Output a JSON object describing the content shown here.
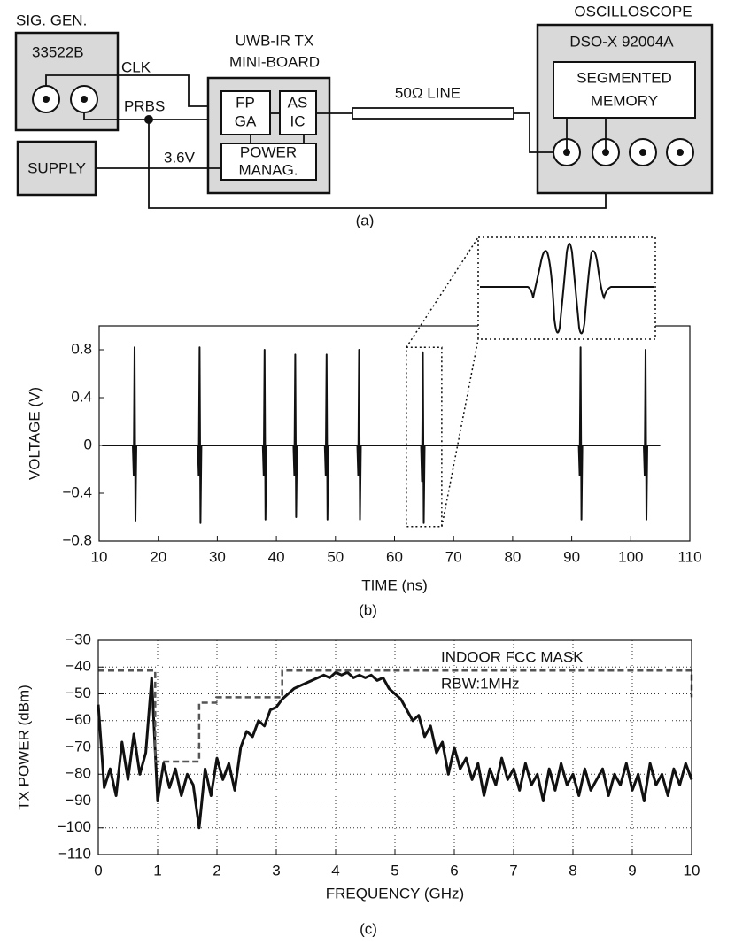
{
  "diagram": {
    "signal_generator": {
      "title": "SIG. GEN.",
      "model": "33522B"
    },
    "clk": "CLK",
    "prbs": "PRBS",
    "tx_board": {
      "title": [
        "UWB-IR TX",
        "MINI-BOARD"
      ],
      "fpga": [
        "FP",
        "GA"
      ],
      "asic": [
        "AS",
        "IC"
      ],
      "power": [
        "POWER",
        "MANAG."
      ]
    },
    "supply": "SUPPLY",
    "voltage": "3.6V",
    "line": "50Ω LINE",
    "oscilloscope": {
      "title": "OSCILLOSCOPE",
      "model": "DSO-X 92004A",
      "memory": [
        "SEGMENTED",
        "MEMORY"
      ]
    },
    "caption": "(a)"
  },
  "chart_data": [
    {
      "type": "line",
      "caption": "(b)",
      "xlabel": "TIME (ns)",
      "ylabel": "VOLTAGE (V)",
      "xlim": [
        10,
        110
      ],
      "xticks": [
        10,
        20,
        30,
        40,
        50,
        60,
        70,
        80,
        90,
        100,
        110
      ],
      "ylim": [
        -0.8,
        1.0
      ],
      "yticks": [
        {
          "value": -0.8,
          "label": "−0.8"
        },
        {
          "value": -0.4,
          "label": "−0.4"
        },
        0,
        0.4,
        0.8
      ],
      "grid": false,
      "highlight": {
        "xlim": [
          62,
          68
        ],
        "ylim": [
          -0.68,
          0.82
        ]
      },
      "series": [
        {
          "color": "#111111",
          "line_style": "solid",
          "x": [
            10.5,
            15.7,
            15.85,
            16,
            16.15,
            16.3,
            26.7,
            26.85,
            27,
            27.15,
            27.3,
            37.7,
            37.85,
            38,
            38.15,
            38.3,
            42.9,
            43.05,
            43.2,
            43.35,
            43.5,
            48.2,
            48.35,
            48.5,
            48.65,
            48.8,
            53.7,
            53.85,
            54,
            54.15,
            54.3,
            64.5,
            64.65,
            64.8,
            64.95,
            65.1,
            91.2,
            91.35,
            91.5,
            91.65,
            91.8,
            102.2,
            102.35,
            102.5,
            102.65,
            102.8,
            105
          ],
          "values": [
            0,
            0,
            -0.25,
            0.82,
            -0.63,
            0,
            0,
            -0.25,
            0.82,
            -0.65,
            0,
            0,
            -0.25,
            0.8,
            -0.62,
            0,
            0,
            -0.25,
            0.76,
            -0.6,
            0,
            0,
            -0.25,
            0.76,
            -0.62,
            0,
            0,
            -0.25,
            0.8,
            -0.62,
            0,
            0,
            -0.3,
            0.78,
            -0.65,
            0,
            0,
            -0.25,
            0.82,
            -0.62,
            0,
            0,
            -0.25,
            0.8,
            -0.62,
            0,
            0
          ]
        }
      ]
    },
    {
      "type": "line",
      "caption": "(c)",
      "xlabel": "FREQUENCY (GHz)",
      "ylabel": "TX POWER (dBm)",
      "xlim": [
        0,
        10
      ],
      "xticks": [
        0,
        1,
        2,
        3,
        4,
        5,
        6,
        7,
        8,
        9,
        10
      ],
      "ylim": [
        -110,
        -30
      ],
      "yticks": [
        {
          "value": -110,
          "label": "−110"
        },
        {
          "value": -100,
          "label": "−100"
        },
        {
          "value": -90,
          "label": "−90"
        },
        {
          "value": -80,
          "label": "−80"
        },
        {
          "value": -70,
          "label": "−70"
        },
        {
          "value": -60,
          "label": "−60"
        },
        {
          "value": -50,
          "label": "−50"
        },
        {
          "value": -40,
          "label": "−40"
        },
        {
          "value": -30,
          "label": "−30"
        }
      ],
      "grid": true,
      "annotations": [
        "INDOOR FCC MASK",
        "RBW:1MHz"
      ],
      "series": [
        {
          "color": "#111111",
          "line_style": "solid",
          "x": [
            0,
            0.1,
            0.2,
            0.3,
            0.4,
            0.5,
            0.6,
            0.7,
            0.8,
            0.9,
            1,
            1.1,
            1.2,
            1.3,
            1.4,
            1.5,
            1.6,
            1.7,
            1.8,
            1.9,
            2,
            2.1,
            2.2,
            2.3,
            2.4,
            2.5,
            2.6,
            2.7,
            2.8,
            2.9,
            3,
            3.1,
            3.2,
            3.3,
            3.4,
            3.5,
            3.6,
            3.7,
            3.8,
            3.9,
            4,
            4.1,
            4.2,
            4.3,
            4.4,
            4.5,
            4.6,
            4.7,
            4.8,
            4.9,
            5,
            5.1,
            5.2,
            5.3,
            5.4,
            5.5,
            5.6,
            5.7,
            5.8,
            5.9,
            6,
            6.1,
            6.2,
            6.3,
            6.4,
            6.5,
            6.6,
            6.7,
            6.8,
            6.9,
            7,
            7.1,
            7.2,
            7.3,
            7.4,
            7.5,
            7.6,
            7.7,
            7.8,
            7.9,
            8,
            8.1,
            8.2,
            8.3,
            8.4,
            8.5,
            8.6,
            8.7,
            8.8,
            8.9,
            9,
            9.1,
            9.2,
            9.3,
            9.4,
            9.5,
            9.6,
            9.7,
            9.8,
            9.9,
            10
          ],
          "values": [
            -54,
            -85,
            -78,
            -88,
            -68,
            -82,
            -65,
            -80,
            -72,
            -44,
            -90,
            -76,
            -85,
            -78,
            -88,
            -80,
            -84,
            -100,
            -78,
            -88,
            -74,
            -82,
            -76,
            -86,
            -70,
            -64,
            -66,
            -60,
            -62,
            -56,
            -55,
            -52,
            -50,
            -48,
            -47,
            -46,
            -45,
            -44,
            -43,
            -44,
            -42,
            -43,
            -42,
            -44,
            -43,
            -44,
            -43,
            -45,
            -44,
            -48,
            -50,
            -52,
            -56,
            -60,
            -58,
            -66,
            -62,
            -72,
            -68,
            -80,
            -70,
            -78,
            -74,
            -82,
            -76,
            -88,
            -78,
            -84,
            -74,
            -82,
            -78,
            -86,
            -76,
            -84,
            -80,
            -90,
            -78,
            -86,
            -76,
            -84,
            -80,
            -88,
            -78,
            -86,
            -82,
            -78,
            -88,
            -80,
            -84,
            -76,
            -86,
            -80,
            -90,
            -76,
            -84,
            -80,
            -88,
            -78,
            -84,
            -76,
            -82
          ]
        },
        {
          "color": "#555555",
          "line_style": "dashed",
          "x": [
            0,
            0.96,
            0.96,
            1.7,
            1.7,
            1.99,
            1.99,
            3.1,
            3.1,
            10,
            10
          ],
          "values": [
            -41.3,
            -41.3,
            -75.3,
            -75.3,
            -53.3,
            -53.3,
            -51.3,
            -51.3,
            -41.3,
            -41.3,
            -51.3
          ]
        }
      ]
    }
  ]
}
